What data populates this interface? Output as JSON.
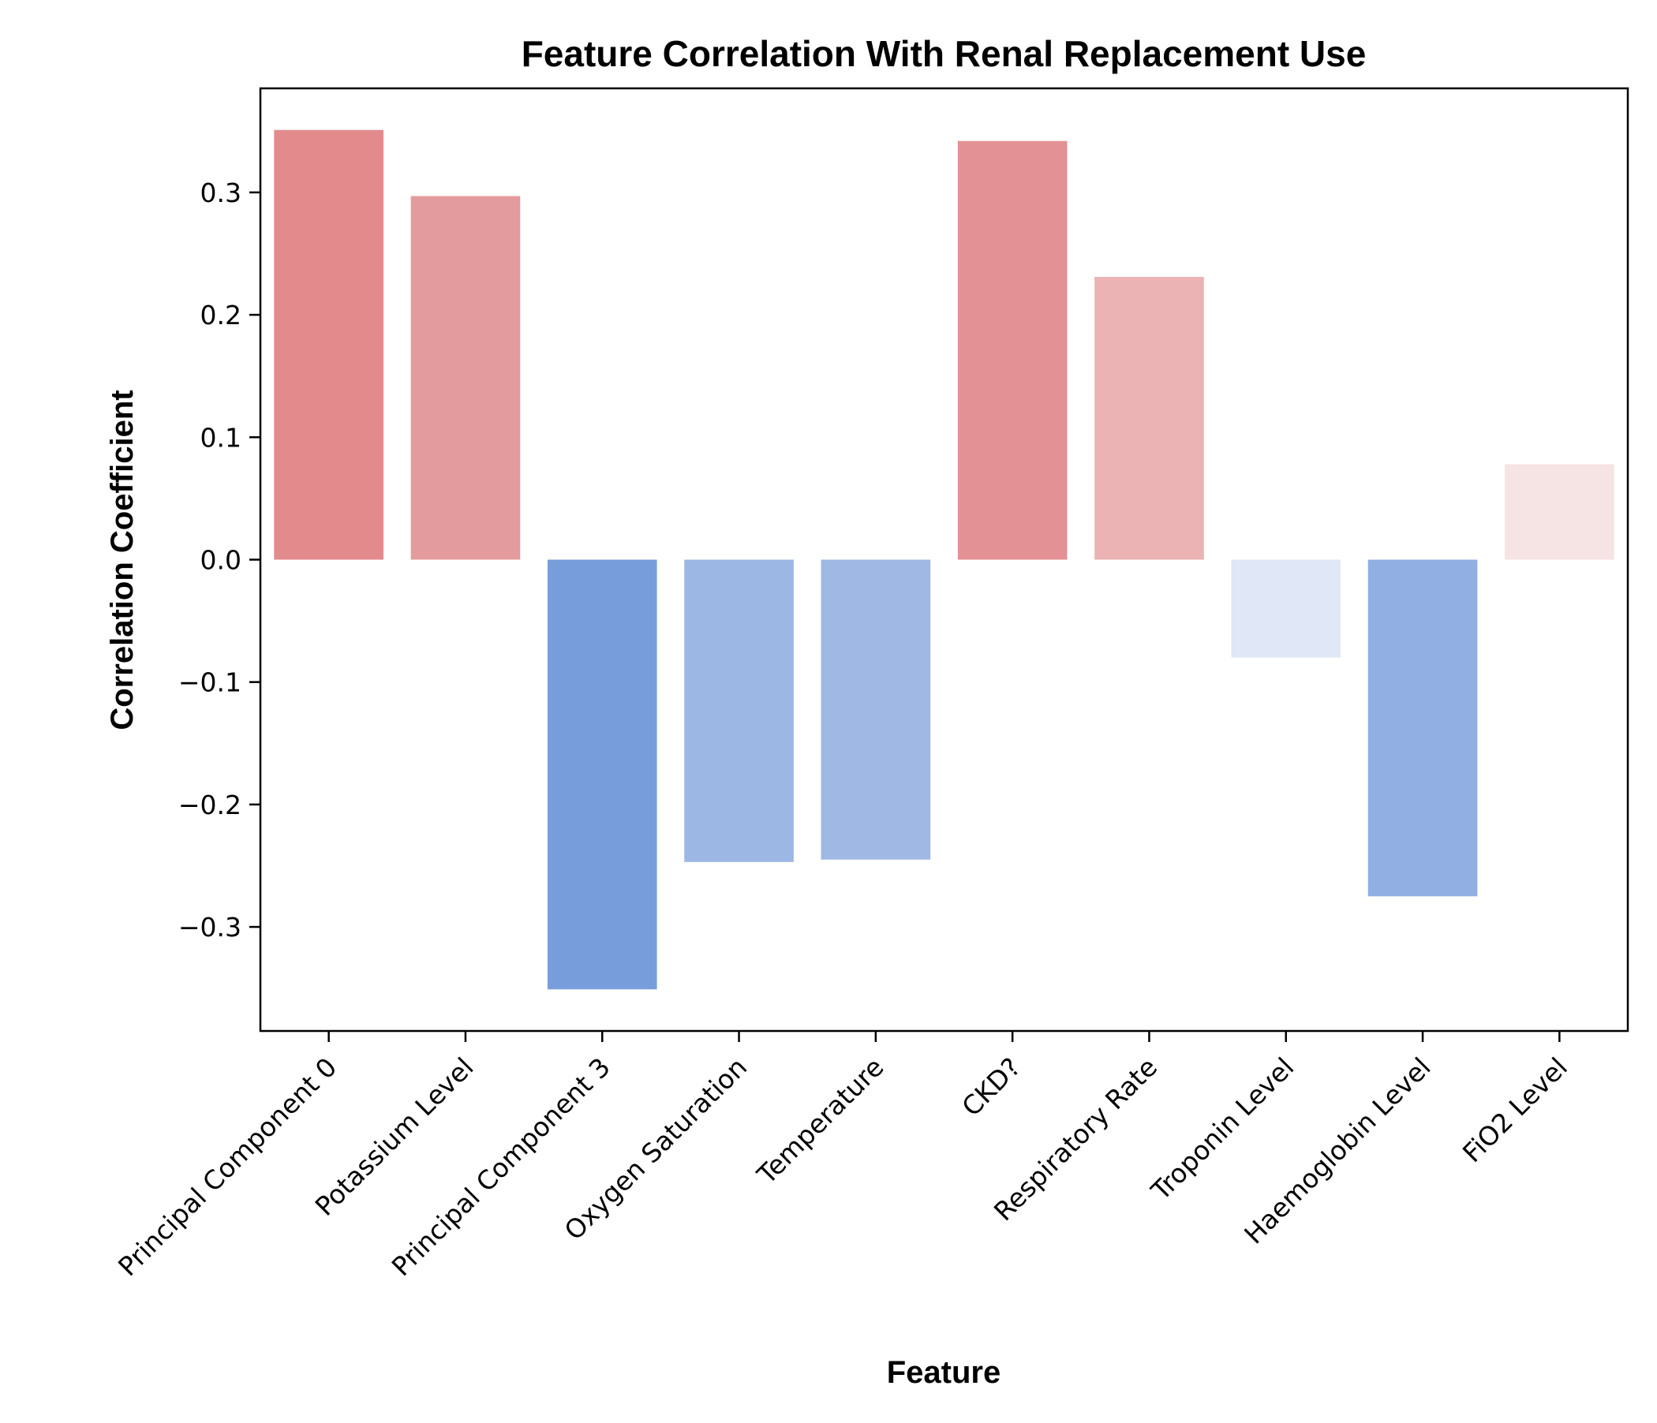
{
  "chart_data": {
    "type": "bar",
    "title": "Feature Correlation With Renal Replacement Use",
    "xlabel": "Feature",
    "ylabel": "Correlation Coefficient",
    "categories": [
      "Principal Component 0",
      "Potassium Level",
      "Principal Component 3",
      "Oxygen Saturation",
      "Temperature",
      "CKD?",
      "Respiratory Rate",
      "Troponin Level",
      "Haemoglobin Level",
      "FiO2 Level"
    ],
    "values": [
      0.351,
      0.297,
      -0.351,
      -0.247,
      -0.245,
      0.342,
      0.231,
      -0.08,
      -0.275,
      0.078
    ],
    "colors": [
      "#e38a8d",
      "#e49b9d",
      "#789ddb",
      "#9db7e5",
      "#9fb8e4",
      "#e39194",
      "#ebb3b4",
      "#e0e7f6",
      "#91afe3",
      "#f6e3e4"
    ],
    "ylim": [
      -0.385,
      0.385
    ],
    "yticks": [
      -0.3,
      -0.2,
      -0.1,
      0.0,
      0.1,
      0.2,
      0.3
    ],
    "ytick_labels": [
      "−0.3",
      "−0.2",
      "−0.1",
      "0.0",
      "0.1",
      "0.2",
      "0.3"
    ],
    "grid": false,
    "legend": "none"
  }
}
